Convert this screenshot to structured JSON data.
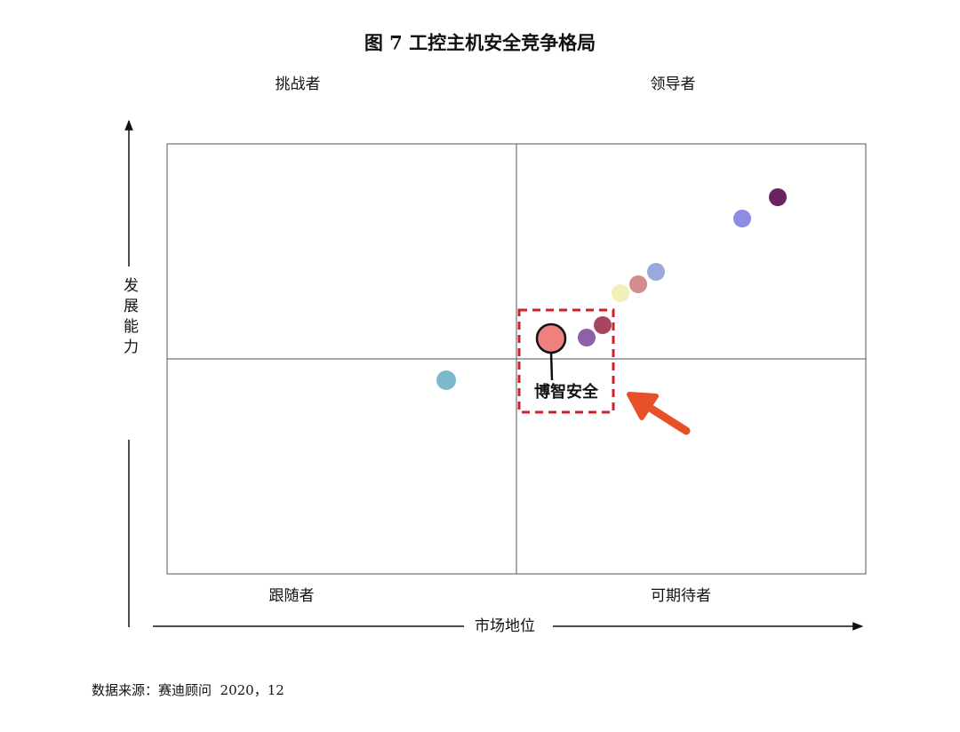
{
  "title": "图 7  工控主机安全竞争格局",
  "quadrants": {
    "top_left": "挑战者",
    "top_right": "领导者",
    "bottom_left": "跟随者",
    "bottom_right": "可期待者"
  },
  "y_axis_label": "发展能力",
  "x_axis_label": "市场地位",
  "highlight_label": "博智安全",
  "source": "数据来源：赛迪顾问  2020，12"
}
